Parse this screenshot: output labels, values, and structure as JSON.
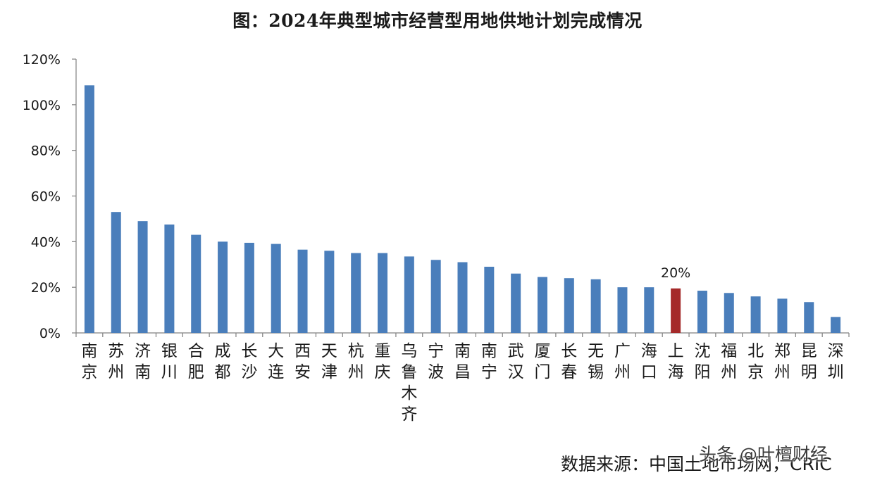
{
  "chart_data": {
    "type": "bar",
    "title": "图：2024年典型城市经营型用地供地计划完成情况",
    "xlabel": "",
    "ylabel": "",
    "ylim": [
      0,
      120
    ],
    "yticks": [
      0,
      20,
      40,
      60,
      80,
      100,
      120
    ],
    "ytick_labels": [
      "0%",
      "20%",
      "40%",
      "60%",
      "80%",
      "100%",
      "120%"
    ],
    "grid": false,
    "legend": "none",
    "categories": [
      "南京",
      "苏州",
      "济南",
      "银川",
      "合肥",
      "成都",
      "长沙",
      "大连",
      "西安",
      "天津",
      "杭州",
      "重庆",
      "乌鲁木齐",
      "宁波",
      "南昌",
      "南宁",
      "武汉",
      "厦门",
      "长春",
      "无锡",
      "广州",
      "海口",
      "上海",
      "沈阳",
      "福州",
      "北京",
      "郑州",
      "昆明",
      "深圳"
    ],
    "values": [
      108.5,
      53,
      49,
      47.5,
      43,
      40,
      39.5,
      39,
      36.5,
      36,
      35,
      35,
      33.5,
      32,
      31,
      29,
      26,
      24.5,
      24,
      23.5,
      20,
      20,
      19.5,
      18.5,
      17.5,
      16,
      15,
      13.5,
      7
    ],
    "highlight_index": 22,
    "highlight_label": "20%",
    "colors": {
      "bar": "#4a7ebb",
      "highlight": "#a52a2a",
      "axis": "#808080",
      "text": "#1a1a1a"
    }
  },
  "source_label": "数据来源：中国土地市场网，CRIC",
  "watermark_text": "头条 @叶檀财经"
}
